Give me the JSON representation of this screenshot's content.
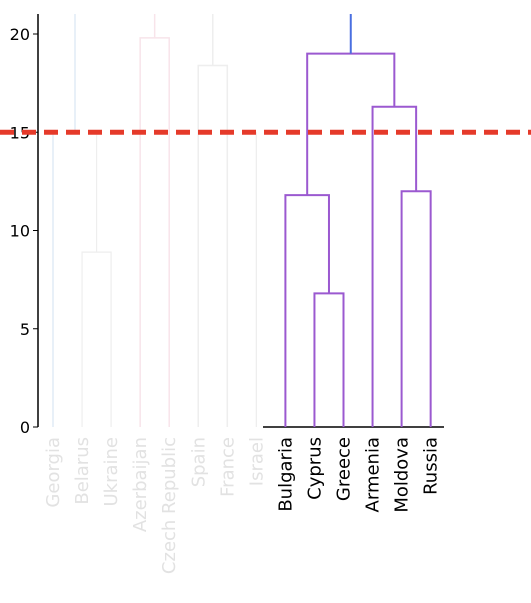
{
  "chart_data": {
    "type": "dendrogram",
    "y_ticks": [
      "0",
      "5",
      "10",
      "15",
      "20"
    ],
    "ylim": [
      0,
      21
    ],
    "threshold": 15,
    "grid": false,
    "leaves": [
      {
        "label": "Georgia",
        "faded": true
      },
      {
        "label": "Belarus",
        "faded": true
      },
      {
        "label": "Ukraine",
        "faded": true
      },
      {
        "label": "Azerbaijan",
        "faded": true
      },
      {
        "label": "Czech Republic",
        "faded": true
      },
      {
        "label": "Spain",
        "faded": true
      },
      {
        "label": "France",
        "faded": true
      },
      {
        "label": "Israel",
        "faded": true
      },
      {
        "label": "Bulgaria",
        "faded": false
      },
      {
        "label": "Cyprus",
        "faded": false
      },
      {
        "label": "Greece",
        "faded": false
      },
      {
        "label": "Armenia",
        "faded": false
      },
      {
        "label": "Moldova",
        "faded": false
      },
      {
        "label": "Russia",
        "faded": false
      }
    ],
    "merges": [
      {
        "children": [
          "Cyprus",
          "Greece"
        ],
        "height": 6.8,
        "highlight": true
      },
      {
        "children": [
          "Bulgaria",
          "Cyprus+Greece"
        ],
        "height": 11.8,
        "highlight": true
      },
      {
        "children": [
          "Moldova",
          "Russia"
        ],
        "height": 12.0,
        "highlight": true
      },
      {
        "children": [
          "Armenia",
          "Moldova+Russia"
        ],
        "height": 16.3,
        "highlight": true
      },
      {
        "children": [
          "Bulgaria+Cyprus+Greece",
          "Armenia+Moldova+Russia"
        ],
        "height": 19.0,
        "highlight": true
      },
      {
        "children": [
          "Belarus",
          "Ukraine"
        ],
        "height": 8.9,
        "highlight": false
      },
      {
        "children": [
          "Azerbaijan",
          "Czech Republic"
        ],
        "height": 19.8,
        "highlight": false
      },
      {
        "children": [
          "Spain",
          "France"
        ],
        "height": 18.4,
        "highlight": false
      }
    ],
    "colors": {
      "highlight": "#9b59d0",
      "root": "#4a6fe0",
      "threshold": "#e53a2a",
      "faded_blue": "#e8f0f8",
      "faded_pink": "#f8e4ea",
      "faded_gray": "#eeeeee",
      "faded_text": "#e2e2e2",
      "axis": "#000000"
    }
  }
}
